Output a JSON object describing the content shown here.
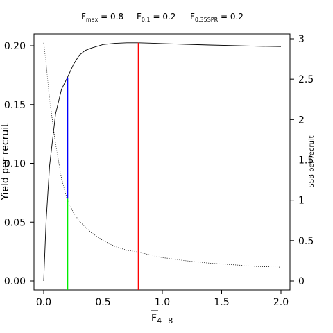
{
  "chart_data": {
    "type": "line",
    "title_parts": [
      {
        "base": "F",
        "sub": "max",
        "rest": " = 0.8"
      },
      {
        "base": "F",
        "sub": "0.1",
        "rest": " = 0.2"
      },
      {
        "base": "F",
        "sub": "0.35SPR",
        "rest": " = 0.2"
      }
    ],
    "xlabel_base": "F",
    "xlabel_sub": "4−8",
    "ylabel_left": "Yield per recruit",
    "ylabel_right": "SSB per recruit",
    "xlim": [
      0,
      2
    ],
    "ylim_left": [
      0,
      0.2
    ],
    "ylim_right": [
      0,
      3
    ],
    "x_ticks": [
      0.0,
      0.5,
      1.0,
      1.5,
      2.0
    ],
    "x_tick_labels": [
      "0.0",
      "0.5",
      "1.0",
      "1.5",
      "2.0"
    ],
    "y_left_ticks": [
      0.0,
      0.05,
      0.1,
      0.15,
      0.2
    ],
    "y_left_tick_labels": [
      "0.00",
      "0.05",
      "0.10",
      "0.15",
      "0.20"
    ],
    "y_right_ticks": [
      0,
      0.5,
      1,
      1.5,
      2,
      2.5,
      3
    ],
    "y_right_tick_labels": [
      "0",
      "0.5",
      "1",
      "1.5",
      "2",
      "2.5",
      "3"
    ],
    "series": [
      {
        "axis": "left",
        "style": "solid",
        "color": "#000000",
        "x": [
          0,
          0.02,
          0.05,
          0.1,
          0.15,
          0.2,
          0.25,
          0.3,
          0.35,
          0.4,
          0.5,
          0.6,
          0.7,
          0.8,
          0.9,
          1.0,
          1.2,
          1.4,
          1.6,
          1.8,
          2.0
        ],
        "y": [
          0,
          0.05,
          0.098,
          0.142,
          0.163,
          0.173,
          0.184,
          0.192,
          0.196,
          0.198,
          0.201,
          0.202,
          0.2025,
          0.2025,
          0.2022,
          0.2018,
          0.2012,
          0.2006,
          0.2001,
          0.1996,
          0.1993
        ]
      },
      {
        "axis": "right",
        "style": "dotted",
        "color": "#000000",
        "x": [
          0,
          0.02,
          0.05,
          0.1,
          0.15,
          0.2,
          0.25,
          0.3,
          0.4,
          0.5,
          0.6,
          0.7,
          0.8,
          0.9,
          1.0,
          1.2,
          1.4,
          1.6,
          1.8,
          2.0
        ],
        "y": [
          2.95,
          2.7,
          2.25,
          1.7,
          1.27,
          1.0,
          0.85,
          0.74,
          0.6,
          0.5,
          0.43,
          0.38,
          0.36,
          0.32,
          0.29,
          0.25,
          0.22,
          0.2,
          0.18,
          0.17
        ]
      }
    ],
    "reference_lines": [
      {
        "x": 0.2,
        "y0": 0.0,
        "y1": 0.07,
        "axis": "left",
        "color": "#00ee00"
      },
      {
        "x": 0.2,
        "y0": 0.07,
        "y1": 0.173,
        "axis": "left",
        "color": "#0000ff"
      },
      {
        "x": 0.8,
        "y0": 0.0,
        "y1": 0.2025,
        "axis": "left",
        "color": "#ff0000"
      }
    ],
    "grid": false,
    "legend": "none"
  }
}
